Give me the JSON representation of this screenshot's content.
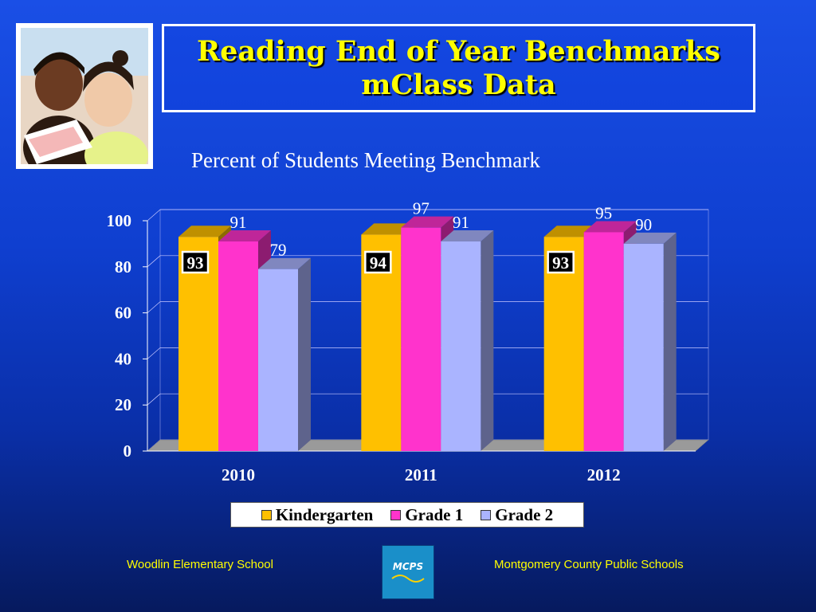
{
  "slide": {
    "title_line1": "Reading End of Year Benchmarks",
    "title_line2": "mClass Data",
    "footer_left": "Woodlin Elementary School",
    "footer_right": "Montgomery County Public Schools",
    "logo_text": "MCPS",
    "photo_icon": "teacher-reading-with-student-photo"
  },
  "chart_data": {
    "type": "bar",
    "title": "Percent of Students Meeting Benchmark",
    "xlabel": "",
    "ylabel": "",
    "categories": [
      "2010",
      "2011",
      "2012"
    ],
    "series": [
      {
        "name": "Kindergarten",
        "values": [
          93,
          94,
          93
        ],
        "color": "#ffc000"
      },
      {
        "name": "Grade 1",
        "values": [
          91,
          97,
          95
        ],
        "color": "#ff33cc"
      },
      {
        "name": "Grade 2",
        "values": [
          79,
          91,
          90
        ],
        "color": "#aab4ff"
      }
    ],
    "ylim": [
      0,
      100
    ],
    "yticks": [
      "0",
      "20",
      "40",
      "60",
      "80",
      "100"
    ],
    "grid": true,
    "style": "3d-clustered",
    "legend": "bottom"
  }
}
